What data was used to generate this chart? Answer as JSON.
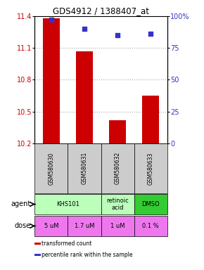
{
  "title": "GDS4912 / 1388407_at",
  "samples": [
    "GSM580630",
    "GSM580631",
    "GSM580632",
    "GSM580633"
  ],
  "bar_values": [
    11.38,
    11.07,
    10.42,
    10.65
  ],
  "percentile_values": [
    97,
    90,
    85,
    86
  ],
  "ylim_left": [
    10.2,
    11.4
  ],
  "ylim_right": [
    0,
    100
  ],
  "yticks_left": [
    10.2,
    10.5,
    10.8,
    11.1,
    11.4
  ],
  "yticks_right": [
    0,
    25,
    50,
    75,
    100
  ],
  "ytick_labels_right": [
    "0",
    "25",
    "50",
    "75",
    "100%"
  ],
  "bar_color": "#cc0000",
  "dot_color": "#3333cc",
  "agent_data": [
    {
      "cols": [
        0,
        1
      ],
      "text": "KHS101",
      "color": "#bbffbb"
    },
    {
      "cols": [
        2
      ],
      "text": "retinoic\nacid",
      "color": "#bbffbb"
    },
    {
      "cols": [
        3
      ],
      "text": "DMSO",
      "color": "#33cc33"
    }
  ],
  "dose_labels": [
    "5 uM",
    "1.7 uM",
    "1 uM",
    "0.1 %"
  ],
  "dose_colors": [
    "#ee77ee",
    "#ee77ee",
    "#ee77ee",
    "#ee77ee"
  ],
  "sample_bg": "#cccccc",
  "grid_color": "#aaaaaa",
  "legend_items": [
    {
      "color": "#cc0000",
      "label": "transformed count"
    },
    {
      "color": "#3333cc",
      "label": "percentile rank within the sample"
    }
  ]
}
